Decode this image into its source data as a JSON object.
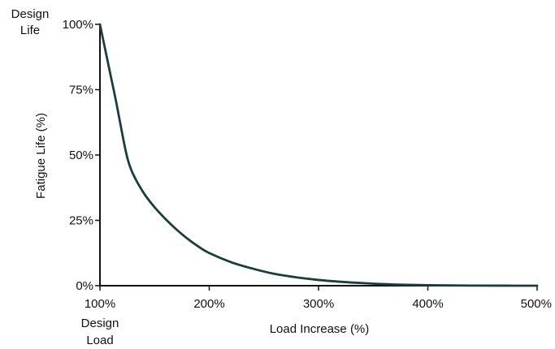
{
  "chart_data": {
    "type": "line",
    "xlabel": "Load Increase (%)",
    "ylabel": "Fatigue Life (%)",
    "xlim": [
      100,
      500
    ],
    "ylim": [
      0,
      100
    ],
    "x_ticks": [
      100,
      200,
      300,
      400,
      500
    ],
    "x_tick_labels": [
      "100%",
      "200%",
      "300%",
      "400%",
      "500%"
    ],
    "y_ticks": [
      0,
      25,
      50,
      75,
      100
    ],
    "y_tick_labels": [
      "0%",
      "25%",
      "50%",
      "75%",
      "100%"
    ],
    "annotations": {
      "design_life": [
        "Design",
        "Life"
      ],
      "design_load": [
        "Design",
        "Load"
      ]
    },
    "grid": false,
    "line_color": "#1c3d3d",
    "series": [
      {
        "x": [
          100,
          105,
          110,
          115,
          120,
          125,
          130,
          140,
          150,
          160,
          170,
          180,
          190,
          200,
          220,
          240,
          260,
          280,
          300,
          320,
          340,
          360,
          380,
          400,
          420,
          440,
          460,
          480,
          500
        ],
        "values": [
          100,
          90,
          80,
          70,
          59,
          49,
          43,
          35.5,
          30,
          25.5,
          21.5,
          18,
          15,
          12.5,
          9,
          6.5,
          4.5,
          3.2,
          2.2,
          1.5,
          1.0,
          0.6,
          0.35,
          0.2,
          0.1,
          0.05,
          0.02,
          0.01,
          0
        ]
      }
    ]
  }
}
